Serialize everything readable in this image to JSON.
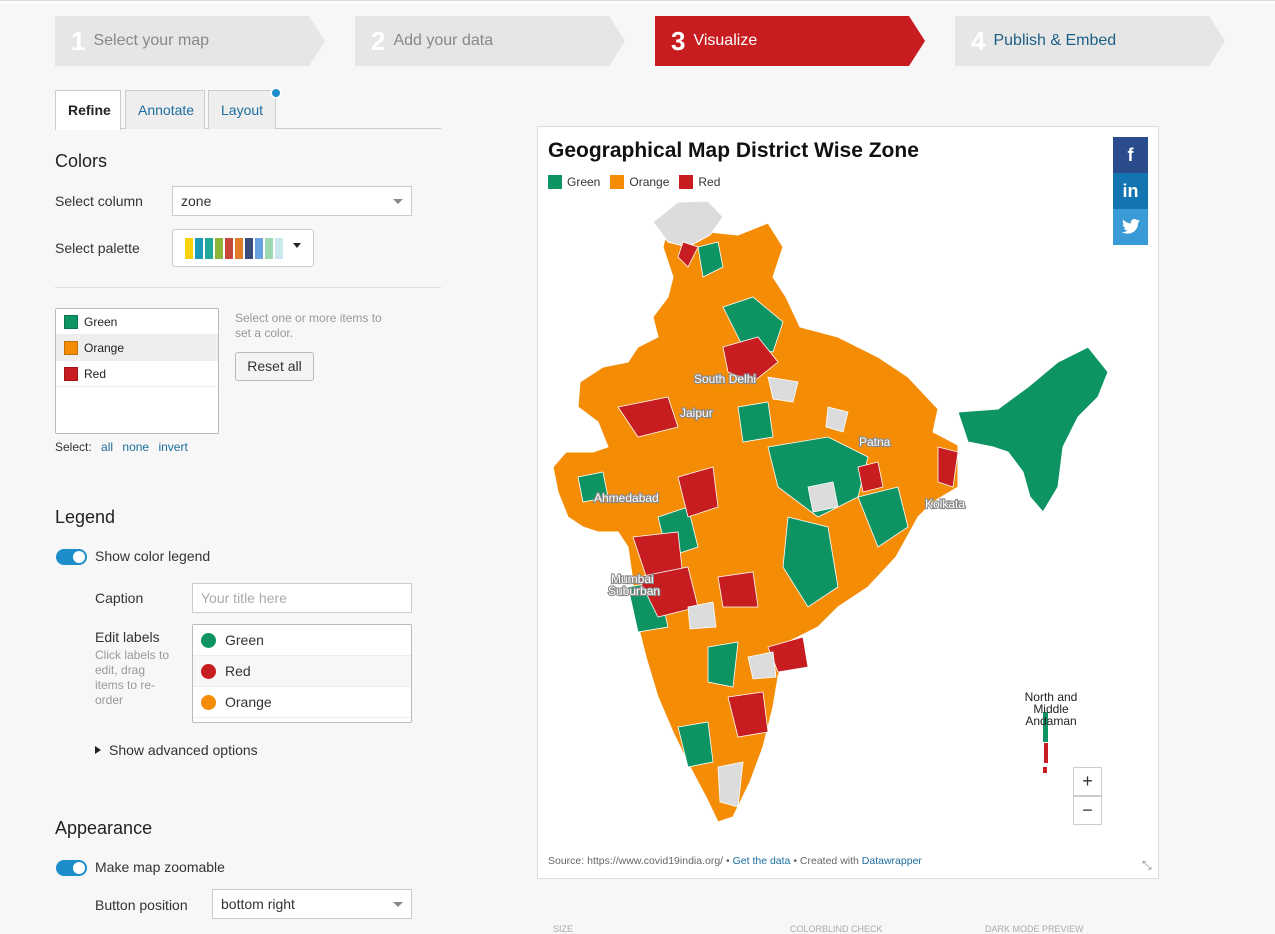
{
  "steps": [
    {
      "num": "1",
      "label": "Select your map"
    },
    {
      "num": "2",
      "label": "Add your data"
    },
    {
      "num": "3",
      "label": "Visualize"
    },
    {
      "num": "4",
      "label": "Publish & Embed"
    }
  ],
  "tabs": {
    "refine": "Refine",
    "annotate": "Annotate",
    "layout": "Layout"
  },
  "colors": {
    "heading": "Colors",
    "select_column_label": "Select column",
    "select_column_value": "zone",
    "select_palette_label": "Select palette",
    "palette_swatches": [
      "#f5d20b",
      "#1a9bb8",
      "#22a99a",
      "#8cb53a",
      "#c9473a",
      "#e37b2a",
      "#3a4c7a",
      "#6aa1e0",
      "#9dd9b0",
      "#cce8ef"
    ],
    "items": [
      {
        "label": "Green",
        "color": "#0e9463"
      },
      {
        "label": "Orange",
        "color": "#f48c06"
      },
      {
        "label": "Red",
        "color": "#c71c20"
      }
    ],
    "hint": "Select one or more items to set a color.",
    "reset_label": "Reset all",
    "select_prefix": "Select:",
    "select_all": "all",
    "select_none": "none",
    "select_invert": "invert"
  },
  "legend": {
    "heading": "Legend",
    "show_color_legend": "Show color legend",
    "caption_label": "Caption",
    "caption_placeholder": "Your title here",
    "edit_labels": "Edit labels",
    "edit_hint": "Click labels to edit, drag items to re-order",
    "labels": [
      {
        "label": "Green",
        "color": "#0e9463"
      },
      {
        "label": "Red",
        "color": "#c71c20"
      },
      {
        "label": "Orange",
        "color": "#f48c06"
      }
    ],
    "advanced": "Show advanced options"
  },
  "appearance": {
    "heading": "Appearance",
    "zoomable": "Make map zoomable",
    "button_position_label": "Button position",
    "button_position_value": "bottom right"
  },
  "preview": {
    "title": "Geographical Map District Wise Zone",
    "legend": [
      {
        "label": "Green",
        "color": "#0e9463"
      },
      {
        "label": "Orange",
        "color": "#f48c06"
      },
      {
        "label": "Red",
        "color": "#c71c20"
      }
    ],
    "social": [
      "f",
      "in",
      "t"
    ],
    "cities": [
      "South Delhi",
      "Jaipur",
      "Patna",
      "Ahmedabad",
      "Kolkata",
      "Mumbai",
      "Suburban"
    ],
    "andaman_label": [
      "North and",
      "Middle",
      "Andaman"
    ],
    "zoom_in": "+",
    "zoom_out": "−",
    "source_prefix": "Source: https://www.covid19india.org/ •",
    "get_data": "Get the data",
    "created_with": "• Created with",
    "datawrapper": "Datawrapper"
  },
  "footer": {
    "size": "SIZE",
    "colorblind": "COLORBLIND CHECK",
    "dark": "DARK MODE PREVIEW"
  }
}
